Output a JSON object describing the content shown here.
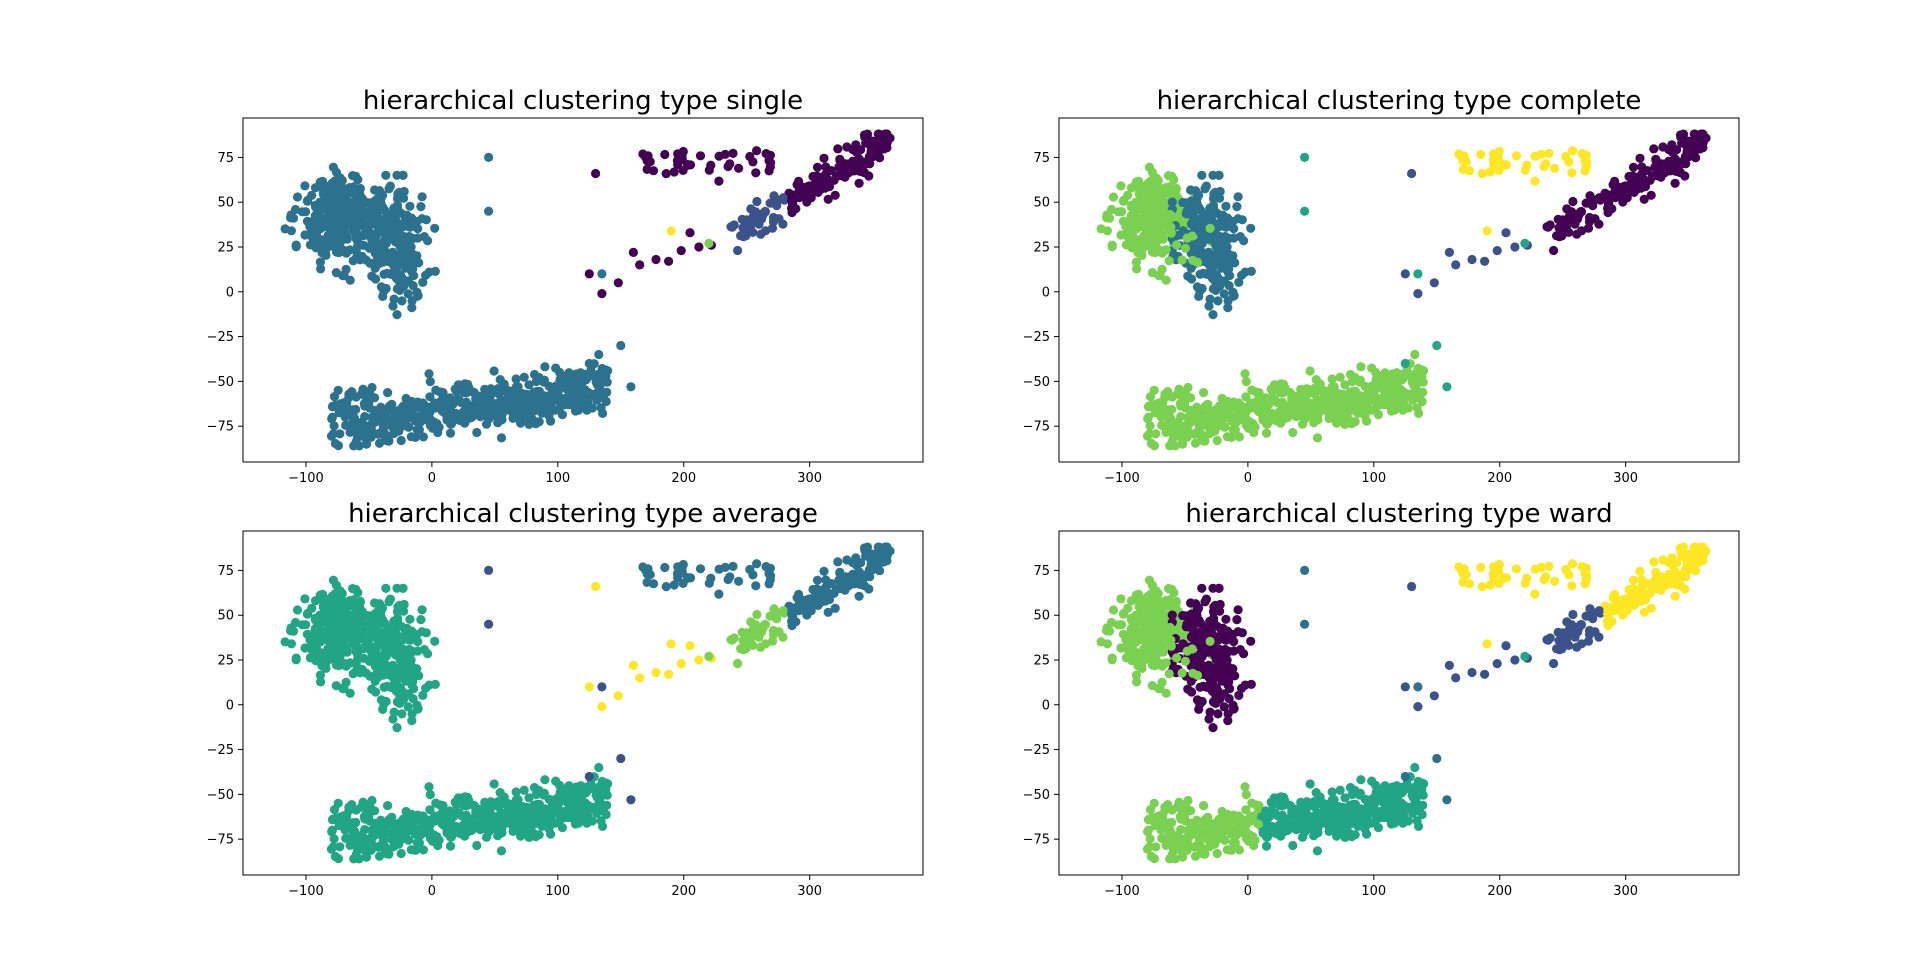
{
  "colors": {
    "c0": "#440154",
    "c1": "#3b528b",
    "c2": "#2c728e",
    "c3": "#21a585",
    "c4": "#7ad151",
    "c5": "#fde725"
  },
  "chart_data": [
    {
      "type": "scatter",
      "title": "hierarchical clustering type single",
      "xlabel": "",
      "ylabel": "",
      "xlim": [
        -150,
        390
      ],
      "ylim": [
        -95,
        97
      ],
      "xticks": [
        -100,
        0,
        100,
        200,
        300
      ],
      "yticks": [
        -75,
        -50,
        -25,
        0,
        25,
        50,
        75
      ],
      "xtick_labels": [
        "−100",
        "0",
        "100",
        "200",
        "300"
      ],
      "ytick_labels": [
        "−75",
        "−50",
        "−25",
        "0",
        "25",
        "50",
        "75"
      ],
      "grid": false,
      "legend": "none",
      "cluster_colors": {
        "blobA": "c2",
        "blobB": "c2",
        "blobC": "c2",
        "chain": "c0",
        "arm": "c0",
        "armLow": "c1",
        "outA": "c2",
        "outB": "c0",
        "yellow": "c5",
        "green": "c4"
      }
    },
    {
      "type": "scatter",
      "title": "hierarchical clustering type complete",
      "xlabel": "",
      "ylabel": "",
      "xlim": [
        -150,
        390
      ],
      "ylim": [
        -95,
        97
      ],
      "xticks": [
        -100,
        0,
        100,
        200,
        300
      ],
      "yticks": [
        -75,
        -50,
        -25,
        0,
        25,
        50,
        75
      ],
      "xtick_labels": [
        "−100",
        "0",
        "100",
        "200",
        "300"
      ],
      "ytick_labels": [
        "−75",
        "−50",
        "−25",
        "0",
        "25",
        "50",
        "75"
      ],
      "grid": false,
      "legend": "none",
      "cluster_colors": {
        "blobA": "c4",
        "blobB": "c2",
        "blobC": "c4",
        "chain": "c1",
        "arm": "c0",
        "armLow": "c0",
        "outA": "c3",
        "outB": "c5",
        "yellow": "c5",
        "green": "c3"
      }
    },
    {
      "type": "scatter",
      "title": "hierarchical clustering type average",
      "xlabel": "",
      "ylabel": "",
      "xlim": [
        -150,
        390
      ],
      "ylim": [
        -95,
        97
      ],
      "xticks": [
        -100,
        0,
        100,
        200,
        300
      ],
      "yticks": [
        -75,
        -50,
        -25,
        0,
        25,
        50,
        75
      ],
      "xtick_labels": [
        "−100",
        "0",
        "100",
        "200",
        "300"
      ],
      "ytick_labels": [
        "−75",
        "−50",
        "−25",
        "0",
        "25",
        "50",
        "75"
      ],
      "grid": false,
      "legend": "none",
      "cluster_colors": {
        "blobA": "c3",
        "blobB": "c3",
        "blobC": "c3",
        "chain": "c5",
        "arm": "c2",
        "armLow": "c4",
        "outA": "c1",
        "outB": "c2",
        "yellow": "c5",
        "green": "c4"
      }
    },
    {
      "type": "scatter",
      "title": "hierarchical clustering type ward",
      "xlabel": "",
      "ylabel": "",
      "xlim": [
        -150,
        390
      ],
      "ylim": [
        -95,
        97
      ],
      "xticks": [
        -100,
        0,
        100,
        200,
        300
      ],
      "yticks": [
        -75,
        -50,
        -25,
        0,
        25,
        50,
        75
      ],
      "xtick_labels": [
        "−100",
        "0",
        "100",
        "200",
        "300"
      ],
      "ytick_labels": [
        "−75",
        "−50",
        "−25",
        "0",
        "25",
        "50",
        "75"
      ],
      "grid": false,
      "legend": "none",
      "cluster_colors": {
        "blobA": "c4",
        "blobB": "c0",
        "blobC": "c3",
        "chain": "c1",
        "arm": "c5",
        "armLow": "c1",
        "outA": "c2",
        "outB": "c5",
        "yellow": "c5",
        "green": "c3"
      }
    }
  ]
}
